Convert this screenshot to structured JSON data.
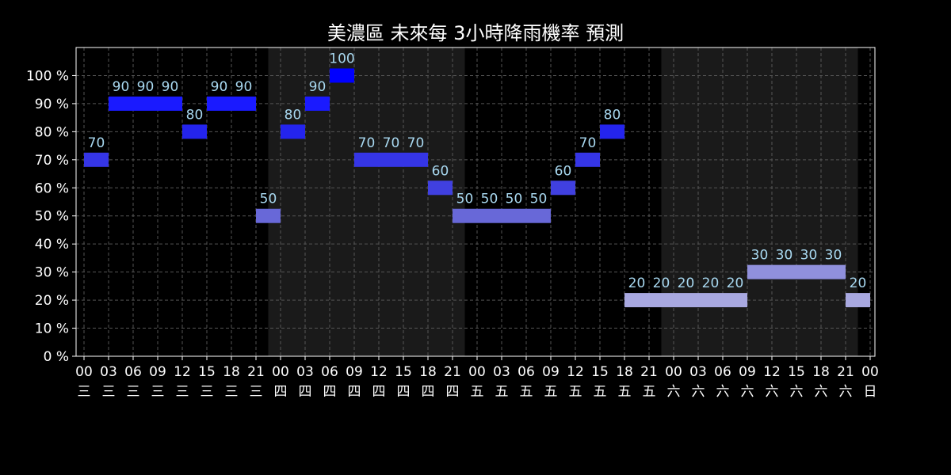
{
  "chart_data": {
    "type": "bar",
    "title": "美濃區 未來每 3小時降雨機率 預測",
    "ylim": [
      0,
      110
    ],
    "y_ticks": [
      "0 %",
      "10 %",
      "20 %",
      "30 %",
      "40 %",
      "50 %",
      "60 %",
      "70 %",
      "80 %",
      "90 %",
      "100 %"
    ],
    "x_ticks": [
      {
        "hour": "00",
        "day": "三"
      },
      {
        "hour": "03",
        "day": "三"
      },
      {
        "hour": "06",
        "day": "三"
      },
      {
        "hour": "09",
        "day": "三"
      },
      {
        "hour": "12",
        "day": "三"
      },
      {
        "hour": "15",
        "day": "三"
      },
      {
        "hour": "18",
        "day": "三"
      },
      {
        "hour": "21",
        "day": "三"
      },
      {
        "hour": "00",
        "day": "四"
      },
      {
        "hour": "03",
        "day": "四"
      },
      {
        "hour": "06",
        "day": "四"
      },
      {
        "hour": "09",
        "day": "四"
      },
      {
        "hour": "12",
        "day": "四"
      },
      {
        "hour": "15",
        "day": "四"
      },
      {
        "hour": "18",
        "day": "四"
      },
      {
        "hour": "21",
        "day": "四"
      },
      {
        "hour": "00",
        "day": "五"
      },
      {
        "hour": "03",
        "day": "五"
      },
      {
        "hour": "06",
        "day": "五"
      },
      {
        "hour": "09",
        "day": "五"
      },
      {
        "hour": "12",
        "day": "五"
      },
      {
        "hour": "15",
        "day": "五"
      },
      {
        "hour": "18",
        "day": "五"
      },
      {
        "hour": "21",
        "day": "五"
      },
      {
        "hour": "00",
        "day": "六"
      },
      {
        "hour": "03",
        "day": "六"
      },
      {
        "hour": "06",
        "day": "六"
      },
      {
        "hour": "09",
        "day": "六"
      },
      {
        "hour": "12",
        "day": "六"
      },
      {
        "hour": "15",
        "day": "六"
      },
      {
        "hour": "18",
        "day": "六"
      },
      {
        "hour": "21",
        "day": "六"
      },
      {
        "hour": "00",
        "day": "日"
      }
    ],
    "values": [
      70,
      90,
      90,
      90,
      80,
      90,
      90,
      50,
      80,
      90,
      100,
      70,
      70,
      70,
      60,
      50,
      50,
      50,
      50,
      60,
      70,
      80,
      20,
      20,
      20,
      20,
      20,
      30,
      30,
      30,
      30,
      20
    ],
    "shaded_days": [
      [
        8,
        16
      ],
      [
        24,
        32
      ]
    ],
    "grid": true,
    "colors": {
      "background": "#000000",
      "shade": "#1a1a1a",
      "grid": "#555555",
      "label": "#a8d8f0",
      "bar_100": "#0000ff",
      "bar_90": "#1a1aff",
      "bar_80": "#2424ee",
      "bar_70": "#3535e6",
      "bar_60": "#4040e0",
      "bar_50": "#6868d8",
      "bar_30": "#9090dc",
      "bar_20": "#a8a8e0"
    }
  }
}
